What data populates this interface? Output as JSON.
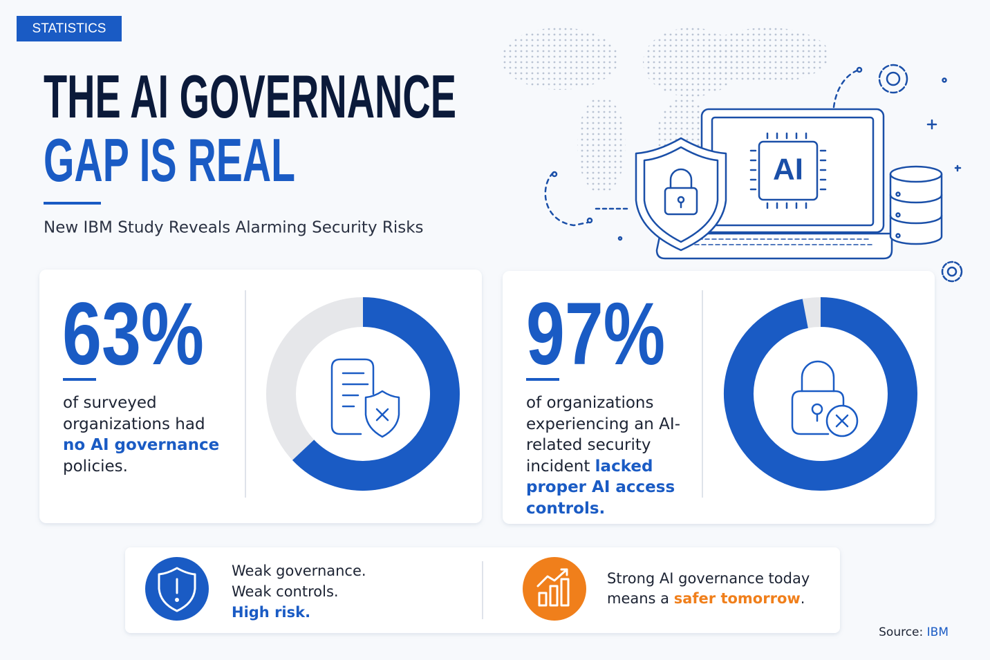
{
  "badge": "STATISTICS",
  "title": {
    "line1": "THE AI GOVERNANCE",
    "line2": "GAP IS REAL"
  },
  "subtitle": "New IBM Study Reveals Alarming Security Risks",
  "illustration": {
    "chip_label": "AI"
  },
  "stats": [
    {
      "value": 63,
      "value_label": "63%",
      "text_before": "of surveyed organizations had",
      "text_highlight": "no AI governance",
      "text_after": "policies."
    },
    {
      "value": 97,
      "value_label": "97%",
      "text_before": "of organizations experiencing an AI-related security incident",
      "text_highlight": "lacked proper AI access controls."
    }
  ],
  "footer": {
    "left": {
      "line1": "Weak governance.",
      "line2": "Weak controls.",
      "line3": "High risk."
    },
    "right": {
      "text_before": "Strong AI governance today means a",
      "text_highlight": "safer tomorrow",
      "text_after": "."
    }
  },
  "source": {
    "label": "Source:",
    "name": "IBM"
  }
}
